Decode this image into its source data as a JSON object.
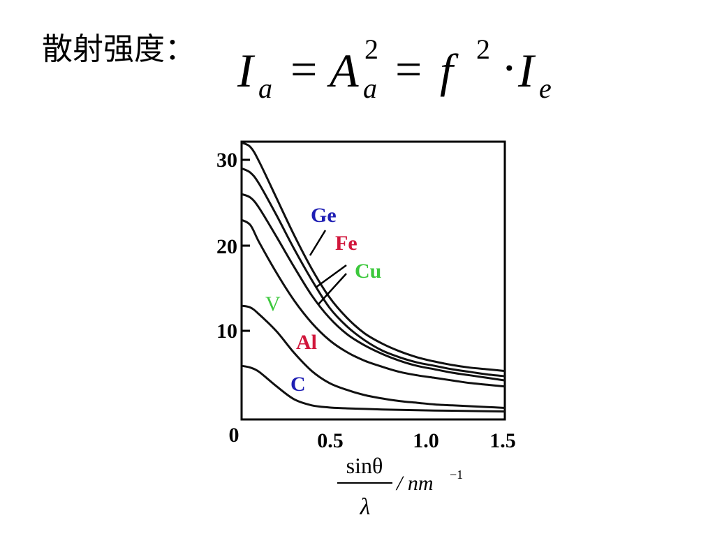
{
  "title": "散射强度：",
  "formula": {
    "I": "I",
    "sub_a": "a",
    "eq": "=",
    "A": "A",
    "sup_2": "2",
    "f": "f",
    "dot": "·",
    "sub_e": "e"
  },
  "chart_data": {
    "type": "line",
    "xlim": [
      0,
      1.5
    ],
    "ylim": [
      0,
      32
    ],
    "x_ticks": [
      "0.5",
      "1.0",
      "1.5"
    ],
    "y_ticks": [
      "10",
      "20",
      "30"
    ],
    "origin_label": "0",
    "xlabel": {
      "numerator": "sinθ",
      "denominator": "λ",
      "unit": "/ nm",
      "exponent": "−1"
    },
    "ylabel": "",
    "grid": false,
    "series": [
      {
        "name": "Ge",
        "color": "#1f1fb4",
        "x": [
          0.0,
          0.05,
          0.1,
          0.2,
          0.3,
          0.4,
          0.5,
          0.6,
          0.7,
          0.8,
          0.9,
          1.0,
          1.1,
          1.2,
          1.3,
          1.4,
          1.5
        ],
        "y": [
          32,
          31.5,
          29.8,
          25.5,
          21.2,
          17.3,
          14.0,
          11.6,
          9.8,
          8.6,
          7.7,
          7.0,
          6.5,
          6.1,
          5.8,
          5.6,
          5.4
        ]
      },
      {
        "name": "Fe",
        "color": "#d1163b",
        "x": [
          0.0,
          0.05,
          0.1,
          0.2,
          0.3,
          0.4,
          0.5,
          0.6,
          0.7,
          0.8,
          0.9,
          1.0,
          1.1,
          1.2,
          1.3,
          1.4,
          1.5
        ],
        "y": [
          29,
          28.5,
          27.2,
          23.5,
          19.6,
          16.0,
          12.8,
          10.6,
          9.0,
          7.8,
          7.0,
          6.4,
          6.0,
          5.6,
          5.3,
          5.0,
          4.8
        ]
      },
      {
        "name": "Cu",
        "color": "#3cc83c",
        "x": [
          0.0,
          0.05,
          0.1,
          0.2,
          0.3,
          0.4,
          0.5,
          0.6,
          0.7,
          0.8,
          0.9,
          1.0,
          1.1,
          1.2,
          1.3,
          1.4,
          1.5
        ],
        "y": [
          26,
          25.6,
          24.4,
          21.0,
          17.5,
          14.2,
          11.6,
          9.7,
          8.4,
          7.4,
          6.6,
          6.0,
          5.6,
          5.2,
          4.9,
          4.6,
          4.3
        ]
      },
      {
        "name": "V",
        "color": "#3cc83c",
        "x": [
          0.0,
          0.05,
          0.1,
          0.2,
          0.3,
          0.4,
          0.5,
          0.6,
          0.7,
          0.8,
          0.9,
          1.0,
          1.1,
          1.2,
          1.3,
          1.4,
          1.5
        ],
        "y": [
          23,
          22.4,
          20.4,
          16.8,
          13.6,
          11.0,
          9.0,
          7.6,
          6.6,
          5.9,
          5.3,
          4.9,
          4.6,
          4.3,
          4.0,
          3.8,
          3.6
        ]
      },
      {
        "name": "Al",
        "color": "#d1163b",
        "x": [
          0.0,
          0.05,
          0.1,
          0.2,
          0.3,
          0.4,
          0.5,
          0.6,
          0.7,
          0.8,
          0.9,
          1.0,
          1.1,
          1.2,
          1.3,
          1.4,
          1.5
        ],
        "y": [
          13,
          12.8,
          12.0,
          10.0,
          7.5,
          5.4,
          4.0,
          3.2,
          2.6,
          2.2,
          1.9,
          1.7,
          1.5,
          1.4,
          1.3,
          1.2,
          1.1
        ]
      },
      {
        "name": "C",
        "color": "#1f1fb4",
        "x": [
          0.0,
          0.05,
          0.1,
          0.2,
          0.3,
          0.4,
          0.5,
          0.6,
          0.7,
          0.8,
          0.9,
          1.0,
          1.1,
          1.2,
          1.3,
          1.4,
          1.5
        ],
        "y": [
          6,
          5.8,
          5.3,
          3.6,
          2.1,
          1.4,
          1.15,
          1.05,
          0.98,
          0.92,
          0.88,
          0.84,
          0.8,
          0.77,
          0.74,
          0.71,
          0.68
        ]
      }
    ]
  }
}
